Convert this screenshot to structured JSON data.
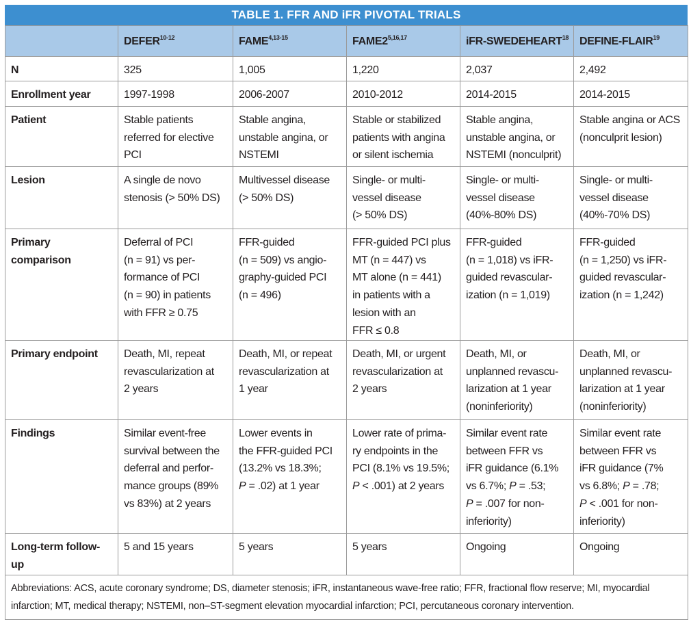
{
  "title": "TABLE 1.  FFR AND iFR PIVOTAL TRIALS",
  "columns": [
    {
      "name": "DEFER",
      "sup": "10-12"
    },
    {
      "name": "FAME",
      "sup": "4,13-15"
    },
    {
      "name": "FAME2",
      "sup": "5,16,17"
    },
    {
      "name": "iFR-SWEDEHEART",
      "sup": "18"
    },
    {
      "name": "DEFINE-FLAIR",
      "sup": "19"
    }
  ],
  "rows": [
    {
      "label": [
        "N"
      ],
      "cells": [
        [
          "325"
        ],
        [
          "1,005"
        ],
        [
          "1,220"
        ],
        [
          "2,037"
        ],
        [
          "2,492"
        ]
      ]
    },
    {
      "label": [
        "Enrollment year"
      ],
      "cells": [
        [
          "1997-1998"
        ],
        [
          "2006-2007"
        ],
        [
          "2010-2012"
        ],
        [
          "2014-2015"
        ],
        [
          "2014-2015"
        ]
      ]
    },
    {
      "label": [
        "Patient"
      ],
      "cells": [
        [
          "Stable patients",
          "referred for elective",
          "PCI"
        ],
        [
          "Stable angina,",
          "unstable angina, or",
          "NSTEMI"
        ],
        [
          "Stable or stabilized",
          "patients with angina",
          "or silent ischemia"
        ],
        [
          "Stable angina,",
          "unstable angina, or",
          "NSTEMI (nonculprit)"
        ],
        [
          "Stable angina or ACS",
          "(nonculprit lesion)"
        ]
      ]
    },
    {
      "label": [
        "Lesion"
      ],
      "cells": [
        [
          "A single de novo",
          "stenosis (> 50% DS)"
        ],
        [
          "Multivessel disease",
          "(> 50% DS)"
        ],
        [
          "Single- or multi-",
          "vessel disease",
          "(> 50% DS)"
        ],
        [
          "Single- or multi-",
          "vessel disease",
          "(40%-80% DS)"
        ],
        [
          "Single- or multi-",
          "vessel disease",
          "(40%-70% DS)"
        ]
      ]
    },
    {
      "label": [
        "Primary",
        "comparison"
      ],
      "cells": [
        [
          "Deferral of PCI",
          "(n = 91) vs per-",
          "formance of PCI",
          "(n = 90) in patients",
          "with FFR ≥ 0.75"
        ],
        [
          "FFR-guided",
          "(n = 509) vs angio-",
          "graphy-guided PCI",
          "(n = 496)"
        ],
        [
          "FFR-guided PCI plus",
          "MT (n = 447) vs",
          "MT alone (n = 441)",
          "in patients with a",
          "lesion with an",
          "FFR ≤ 0.8"
        ],
        [
          "FFR-guided",
          "(n = 1,018) vs iFR-",
          "guided revascular-",
          "ization (n = 1,019)"
        ],
        [
          "FFR-guided",
          "(n = 1,250) vs iFR-",
          "guided revascular-",
          "ization (n = 1,242)"
        ]
      ]
    },
    {
      "label": [
        "Primary endpoint"
      ],
      "cells": [
        [
          "Death, MI, repeat",
          "revascularization at",
          "2 years"
        ],
        [
          "Death, MI, or repeat",
          "revascularization at",
          "1 year"
        ],
        [
          "Death, MI, or urgent",
          "revascularization at",
          "2 years"
        ],
        [
          "Death, MI, or",
          "unplanned revascu-",
          "larization at 1 year",
          "(noninferiority)"
        ],
        [
          "Death, MI, or",
          "unplanned revascu-",
          "larization at 1 year",
          "(noninferiority)"
        ]
      ]
    },
    {
      "label": [
        "Findings"
      ],
      "cells": [
        [
          "Similar event-free",
          "survival between the",
          "deferral and perfor-",
          "mance groups (89%",
          "vs 83%) at 2 years"
        ],
        [
          "Lower events in",
          "the FFR-guided PCI",
          "(13.2% vs 18.3%;",
          [
            {
              "text": "P",
              "italic": true
            },
            " = .02) at 1 year"
          ]
        ],
        [
          "Lower rate of prima-",
          "ry endpoints in the",
          "PCI (8.1% vs 19.5%;",
          [
            {
              "text": "P",
              "italic": true
            },
            " < .001) at 2 years"
          ]
        ],
        [
          "Similar event rate",
          "between FFR vs",
          "iFR guidance (6.1%",
          [
            "vs 6.7%; ",
            {
              "text": "P",
              "italic": true
            },
            " = .53;"
          ],
          [
            {
              "text": "P",
              "italic": true
            },
            " = .007 for non-"
          ],
          "inferiority)"
        ],
        [
          "Similar event rate",
          "between FFR vs",
          "iFR guidance (7%",
          [
            "vs 6.8%; ",
            {
              "text": "P",
              "italic": true
            },
            " = .78;"
          ],
          [
            {
              "text": "P",
              "italic": true
            },
            " < .001 for non-"
          ],
          "inferiority)"
        ]
      ]
    },
    {
      "label": [
        "Long-term follow-",
        "up"
      ],
      "cells": [
        [
          "5 and 15 years"
        ],
        [
          "5 years"
        ],
        [
          "5 years"
        ],
        [
          "Ongoing"
        ],
        [
          "Ongoing"
        ]
      ]
    }
  ],
  "footnote": [
    "Abbreviations: ACS, acute coronary syndrome; DS, diameter stenosis; iFR, instantaneous wave-free ratio; FFR, fractional flow reserve; MI, myocardial",
    "infarction; MT, medical therapy; NSTEMI, non–ST-segment elevation myocardial infarction; PCI, percutaneous coronary intervention."
  ]
}
